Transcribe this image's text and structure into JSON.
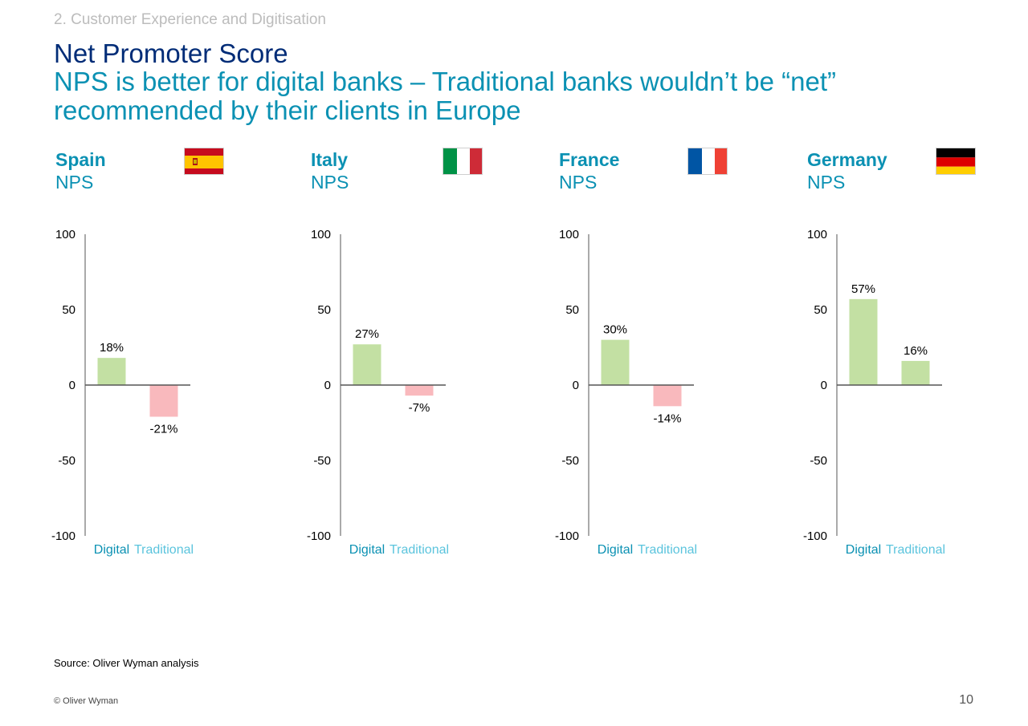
{
  "header": {
    "section": "2. Customer Experience and Digitisation",
    "title": "Net Promoter Score",
    "subtitle": "NPS is better for digital banks – Traditional banks wouldn’t be “net” recommended by their clients in Europe"
  },
  "colors": {
    "positive_bar": "#c3e0a3",
    "negative_bar": "#f9b9bd",
    "digital_label": "#0b91b3",
    "traditional_label": "#5bc4dd"
  },
  "chart_data": [
    {
      "type": "bar",
      "country": "Spain",
      "metric": "NPS",
      "flag_icon": "spain-flag-icon",
      "categories": [
        "Digital",
        "Traditional"
      ],
      "values": [
        18,
        -21
      ],
      "labels": [
        "18%",
        "-21%"
      ],
      "ylim": [
        -100,
        100
      ],
      "yticks": [
        "100",
        "50",
        "0",
        "-50",
        "-100"
      ],
      "ytick_values": [
        100,
        50,
        0,
        -50,
        -100
      ],
      "grid": false
    },
    {
      "type": "bar",
      "country": "Italy",
      "metric": "NPS",
      "flag_icon": "italy-flag-icon",
      "categories": [
        "Digital",
        "Traditional"
      ],
      "values": [
        27,
        -7
      ],
      "labels": [
        "27%",
        "-7%"
      ],
      "ylim": [
        -100,
        100
      ],
      "yticks": [
        "100",
        "50",
        "0",
        "-50",
        "-100"
      ],
      "ytick_values": [
        100,
        50,
        0,
        -50,
        -100
      ],
      "grid": false
    },
    {
      "type": "bar",
      "country": "France",
      "metric": "NPS",
      "flag_icon": "france-flag-icon",
      "categories": [
        "Digital",
        "Traditional"
      ],
      "values": [
        30,
        -14
      ],
      "labels": [
        "30%",
        "-14%"
      ],
      "ylim": [
        -100,
        100
      ],
      "yticks": [
        "100",
        "50",
        "0",
        "-50",
        "-100"
      ],
      "ytick_values": [
        100,
        50,
        0,
        -50,
        -100
      ],
      "grid": false
    },
    {
      "type": "bar",
      "country": "Germany",
      "metric": "NPS",
      "flag_icon": "germany-flag-icon",
      "categories": [
        "Digital",
        "Traditional"
      ],
      "values": [
        57,
        16
      ],
      "labels": [
        "57%",
        "16%"
      ],
      "ylim": [
        -100,
        100
      ],
      "yticks": [
        "100",
        "50",
        "0",
        "-50",
        "-100"
      ],
      "ytick_values": [
        100,
        50,
        0,
        -50,
        -100
      ],
      "grid": false
    }
  ],
  "footer": {
    "source": "Source: Oliver Wyman analysis",
    "copyright": "© Oliver Wyman",
    "page_number": "10"
  }
}
